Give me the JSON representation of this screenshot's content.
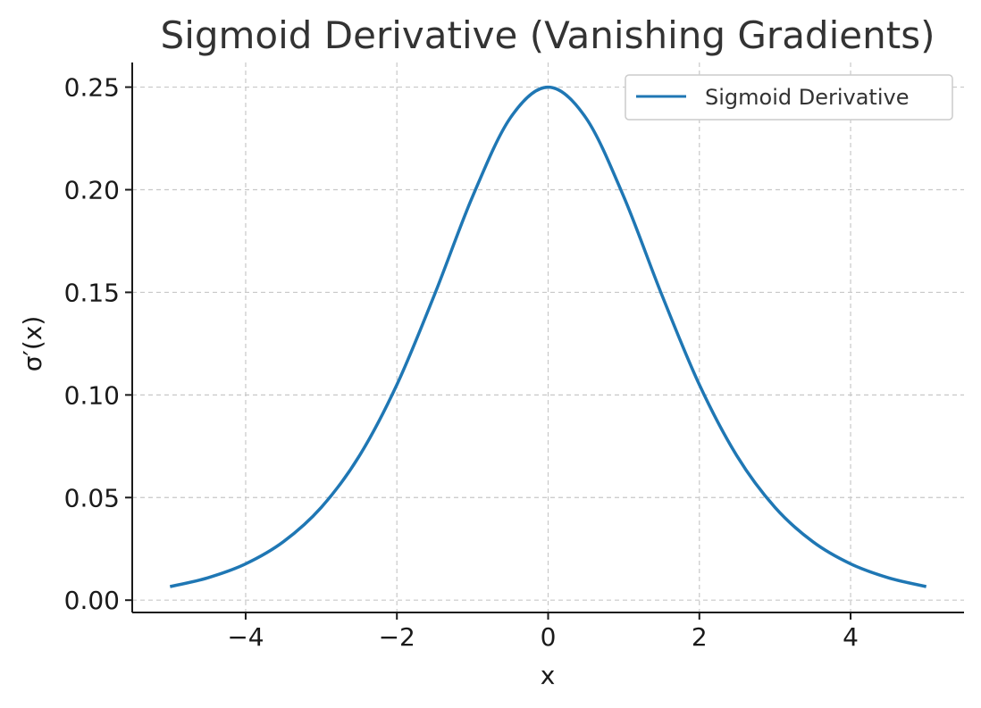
{
  "chart_data": {
    "type": "line",
    "title": "Sigmoid Derivative (Vanishing Gradients)",
    "xlabel": "x",
    "ylabel": "σ′(x)",
    "xlim": [
      -5.5,
      5.5
    ],
    "ylim": [
      -0.006,
      0.262
    ],
    "xticks": [
      -4,
      -2,
      0,
      2,
      4
    ],
    "xtick_labels": [
      "−4",
      "−2",
      "0",
      "2",
      "4"
    ],
    "yticks": [
      0.0,
      0.05,
      0.1,
      0.15,
      0.2,
      0.25
    ],
    "ytick_labels": [
      "0.00",
      "0.05",
      "0.10",
      "0.15",
      "0.20",
      "0.25"
    ],
    "grid": true,
    "legend_position": "top-right",
    "series": [
      {
        "name": "Sigmoid Derivative",
        "color": "#1f77b4",
        "x": [
          -5.0,
          -4.5,
          -4.0,
          -3.5,
          -3.0,
          -2.5,
          -2.0,
          -1.5,
          -1.0,
          -0.5,
          0.0,
          0.5,
          1.0,
          1.5,
          2.0,
          2.5,
          3.0,
          3.5,
          4.0,
          4.5,
          5.0
        ],
        "y": [
          0.0066,
          0.0109,
          0.0177,
          0.0285,
          0.0452,
          0.0701,
          0.105,
          0.1491,
          0.1966,
          0.235,
          0.25,
          0.235,
          0.1966,
          0.1491,
          0.105,
          0.0701,
          0.0452,
          0.0285,
          0.0177,
          0.0109,
          0.0066
        ]
      }
    ]
  }
}
